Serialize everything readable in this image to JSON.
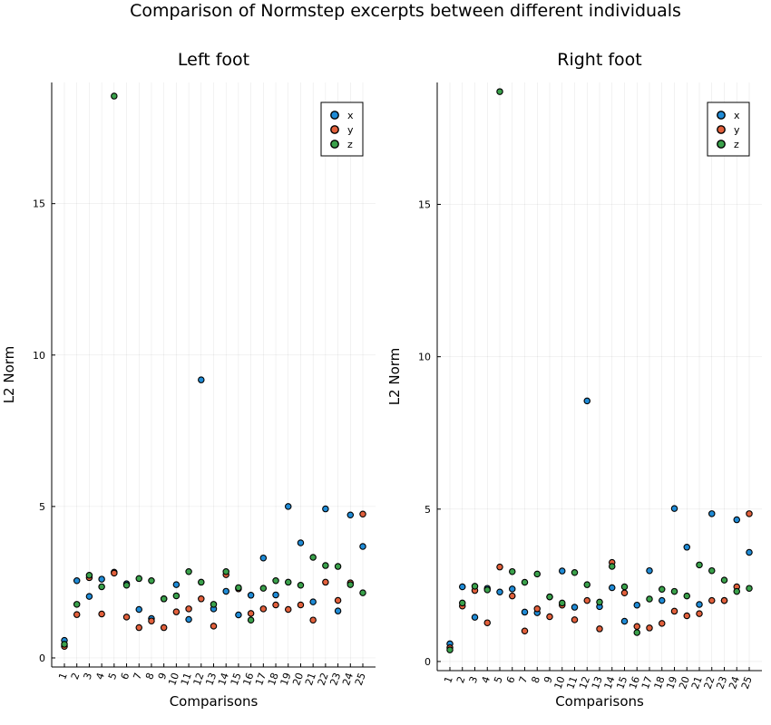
{
  "figure": {
    "title": "Comparison of Normstep excerpts between different individuals"
  },
  "chart_data": [
    {
      "type": "scatter",
      "title": "Left foot",
      "xlabel": "Comparisons",
      "ylabel": "L2 Norm",
      "categories": [
        "1",
        "2",
        "3",
        "4",
        "5",
        "6",
        "7",
        "8",
        "9",
        "10",
        "11",
        "12",
        "13",
        "14",
        "15",
        "16",
        "17",
        "18",
        "19",
        "20",
        "21",
        "22",
        "23",
        "24",
        "25"
      ],
      "yticks": [
        0,
        5,
        10,
        15
      ],
      "ylim": [
        -0.3,
        19.0
      ],
      "grid": true,
      "legend": "top-right",
      "series": [
        {
          "name": "x",
          "color": "#1f8bd6",
          "values": [
            0.58,
            2.55,
            2.03,
            2.6,
            2.83,
            2.45,
            1.6,
            1.3,
            1.95,
            2.42,
            1.27,
            9.18,
            1.62,
            2.2,
            1.42,
            2.07,
            3.3,
            2.08,
            5.0,
            3.8,
            1.85,
            4.92,
            1.55,
            4.72,
            3.68
          ]
        },
        {
          "name": "y",
          "color": "#e2603c",
          "values": [
            0.38,
            1.43,
            2.65,
            1.45,
            2.8,
            1.35,
            1.0,
            1.22,
            1.0,
            1.52,
            1.62,
            1.95,
            1.05,
            2.75,
            2.28,
            1.47,
            1.62,
            1.75,
            1.6,
            1.75,
            1.25,
            2.5,
            1.9,
            2.48,
            4.75
          ]
        },
        {
          "name": "z",
          "color": "#3aa14b",
          "values": [
            0.45,
            1.77,
            2.73,
            2.35,
            18.55,
            2.4,
            2.62,
            2.55,
            1.95,
            2.05,
            2.85,
            2.5,
            1.77,
            2.85,
            2.32,
            1.25,
            2.3,
            2.55,
            2.5,
            2.4,
            3.32,
            3.05,
            3.02,
            2.42,
            2.15
          ]
        }
      ]
    },
    {
      "type": "scatter",
      "title": "Right foot",
      "xlabel": "Comparisons",
      "ylabel": "L2 Norm",
      "categories": [
        "1",
        "2",
        "3",
        "4",
        "5",
        "6",
        "7",
        "8",
        "9",
        "10",
        "11",
        "12",
        "13",
        "14",
        "15",
        "16",
        "17",
        "18",
        "19",
        "20",
        "21",
        "22",
        "23",
        "24",
        "25"
      ],
      "yticks": [
        0,
        5,
        10,
        15
      ],
      "ylim": [
        -0.3,
        19.0
      ],
      "grid": true,
      "legend": "top-right",
      "series": [
        {
          "name": "x",
          "color": "#1f8bd6",
          "values": [
            0.58,
            2.45,
            1.45,
            2.4,
            2.28,
            2.38,
            1.62,
            1.6,
            2.12,
            2.97,
            1.78,
            8.55,
            1.8,
            2.42,
            1.32,
            1.85,
            2.98,
            2.0,
            5.02,
            3.75,
            1.87,
            4.85,
            2.0,
            4.65,
            3.58
          ]
        },
        {
          "name": "y",
          "color": "#e2603c",
          "values": [
            0.45,
            1.82,
            2.33,
            1.27,
            3.1,
            2.15,
            1.0,
            1.73,
            1.47,
            1.85,
            1.37,
            2.0,
            1.07,
            3.25,
            2.25,
            1.15,
            1.1,
            1.25,
            1.65,
            1.5,
            1.57,
            2.0,
            2.0,
            2.45,
            4.85
          ]
        },
        {
          "name": "z",
          "color": "#3aa14b",
          "values": [
            0.38,
            1.92,
            2.47,
            2.35,
            18.7,
            2.95,
            2.6,
            2.87,
            2.12,
            1.92,
            2.92,
            2.52,
            1.95,
            3.12,
            2.45,
            0.95,
            2.05,
            2.37,
            2.3,
            2.15,
            3.17,
            2.98,
            2.67,
            2.3,
            2.4
          ]
        }
      ]
    }
  ]
}
